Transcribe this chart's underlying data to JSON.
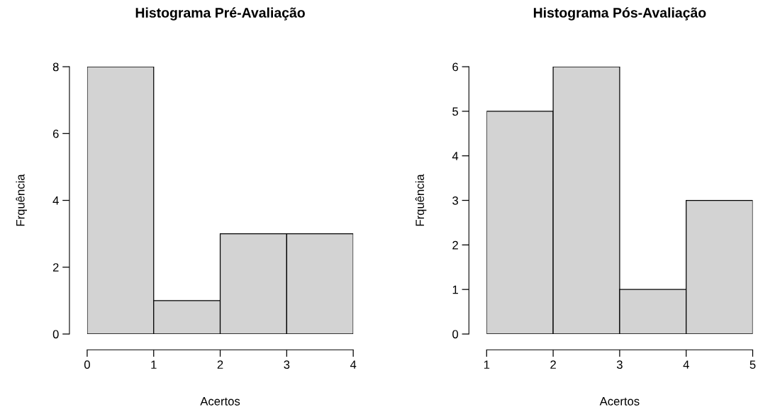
{
  "chart_data": [
    {
      "type": "histogram",
      "title": "Histograma Pré-Avaliação",
      "xlabel": "Acertos",
      "ylabel": "Frquência",
      "bins": [
        0,
        1,
        2,
        3,
        4
      ],
      "values": [
        8,
        1,
        3,
        3
      ],
      "color": "#d3d3d3",
      "xlim": [
        0,
        4
      ],
      "xticks": [
        0,
        1,
        2,
        3,
        4
      ],
      "ylim": [
        0,
        8
      ],
      "yticks": [
        0,
        2,
        4,
        6,
        8
      ],
      "grid": false,
      "legend": false
    },
    {
      "type": "histogram",
      "title": "Histograma Pós-Avaliação",
      "xlabel": "Acertos",
      "ylabel": "Frquência",
      "bins": [
        1,
        2,
        3,
        4,
        5
      ],
      "values": [
        5,
        6,
        1,
        3
      ],
      "color": "#d3d3d3",
      "xlim": [
        1,
        5
      ],
      "xticks": [
        1,
        2,
        3,
        4,
        5
      ],
      "ylim": [
        0,
        6
      ],
      "yticks": [
        0,
        1,
        2,
        3,
        4,
        5,
        6
      ],
      "grid": false,
      "legend": false
    }
  ]
}
